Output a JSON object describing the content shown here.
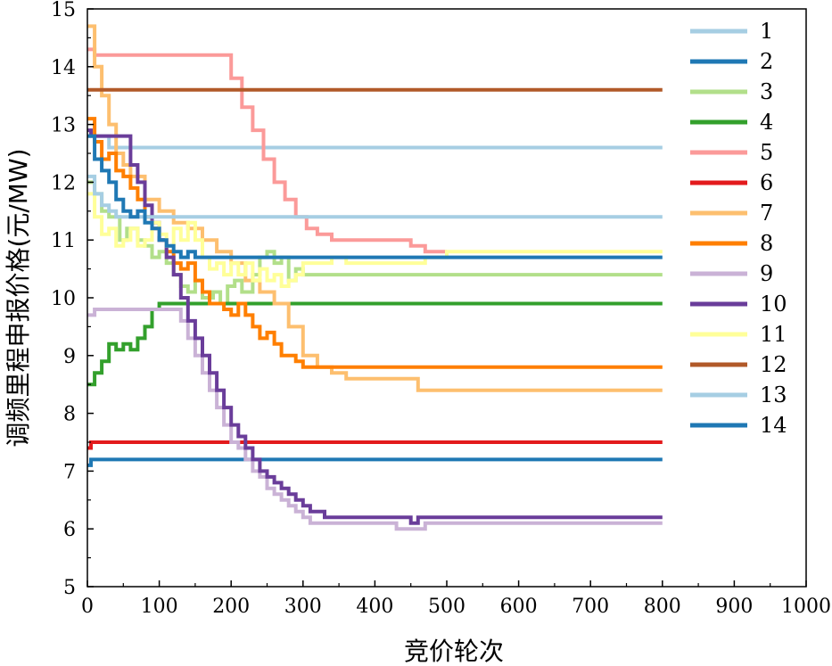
{
  "chart_data": {
    "type": "line",
    "xlabel": "竞价轮次",
    "ylabel": "调频里程申报价格(元/MW)",
    "xlim": [
      0,
      1000
    ],
    "ylim": [
      5,
      15
    ],
    "xticks": [
      "0",
      "100",
      "200",
      "300",
      "400",
      "500",
      "600",
      "700",
      "800",
      "900",
      "1000"
    ],
    "yticks": [
      "5",
      "6",
      "7",
      "8",
      "9",
      "10",
      "11",
      "12",
      "13",
      "14",
      "15"
    ],
    "grid": false,
    "legend_position": "top-right",
    "series": [
      {
        "name": "1",
        "color": "#a6cee3",
        "points": [
          [
            0,
            12.8
          ],
          [
            30,
            12.6
          ],
          [
            800,
            12.6
          ]
        ]
      },
      {
        "name": "2",
        "color": "#1f78b4",
        "points": [
          [
            0,
            7.1
          ],
          [
            5,
            7.2
          ],
          [
            800,
            7.2
          ]
        ]
      },
      {
        "name": "3",
        "color": "#b2df8a",
        "points": [
          [
            0,
            12.0
          ],
          [
            10,
            11.8
          ],
          [
            20,
            11.5
          ],
          [
            30,
            11.4
          ],
          [
            45,
            11.0
          ],
          [
            55,
            11.2
          ],
          [
            70,
            11.0
          ],
          [
            80,
            10.9
          ],
          [
            90,
            10.7
          ],
          [
            100,
            10.8
          ],
          [
            110,
            10.6
          ],
          [
            120,
            10.4
          ],
          [
            130,
            10.2
          ],
          [
            140,
            10.1
          ],
          [
            150,
            10.3
          ],
          [
            160,
            10.0
          ],
          [
            175,
            10.1
          ],
          [
            185,
            9.9
          ],
          [
            195,
            10.2
          ],
          [
            205,
            10.3
          ],
          [
            215,
            10.1
          ],
          [
            230,
            10.4
          ],
          [
            240,
            10.7
          ],
          [
            250,
            10.8
          ],
          [
            260,
            10.6
          ],
          [
            270,
            10.7
          ],
          [
            280,
            10.3
          ],
          [
            290,
            10.5
          ],
          [
            300,
            10.4
          ],
          [
            800,
            10.4
          ]
        ]
      },
      {
        "name": "4",
        "color": "#33a02c",
        "points": [
          [
            0,
            8.5
          ],
          [
            10,
            8.7
          ],
          [
            20,
            8.9
          ],
          [
            30,
            9.2
          ],
          [
            40,
            9.1
          ],
          [
            50,
            9.2
          ],
          [
            60,
            9.1
          ],
          [
            70,
            9.3
          ],
          [
            80,
            9.5
          ],
          [
            90,
            9.8
          ],
          [
            100,
            9.9
          ],
          [
            800,
            9.9
          ]
        ]
      },
      {
        "name": "5",
        "color": "#fb9a99",
        "points": [
          [
            0,
            14.3
          ],
          [
            10,
            14.2
          ],
          [
            185,
            14.2
          ],
          [
            200,
            13.8
          ],
          [
            215,
            13.3
          ],
          [
            230,
            12.9
          ],
          [
            245,
            12.4
          ],
          [
            260,
            12.0
          ],
          [
            275,
            11.7
          ],
          [
            290,
            11.4
          ],
          [
            305,
            11.2
          ],
          [
            320,
            11.1
          ],
          [
            340,
            11.0
          ],
          [
            430,
            11.0
          ],
          [
            450,
            10.9
          ],
          [
            470,
            10.8
          ],
          [
            500,
            10.8
          ]
        ]
      },
      {
        "name": "6",
        "color": "#e31a1c",
        "points": [
          [
            0,
            7.4
          ],
          [
            5,
            7.5
          ],
          [
            800,
            7.5
          ]
        ]
      },
      {
        "name": "7",
        "color": "#fdbf6f",
        "points": [
          [
            0,
            14.7
          ],
          [
            10,
            14.0
          ],
          [
            20,
            13.5
          ],
          [
            30,
            13.0
          ],
          [
            40,
            12.5
          ],
          [
            50,
            12.3
          ],
          [
            60,
            12.1
          ],
          [
            80,
            11.7
          ],
          [
            100,
            11.5
          ],
          [
            120,
            11.3
          ],
          [
            140,
            11.2
          ],
          [
            160,
            11.0
          ],
          [
            180,
            10.8
          ],
          [
            200,
            10.6
          ],
          [
            220,
            10.3
          ],
          [
            240,
            10.1
          ],
          [
            260,
            9.9
          ],
          [
            280,
            9.5
          ],
          [
            300,
            9.0
          ],
          [
            320,
            8.8
          ],
          [
            340,
            8.7
          ],
          [
            360,
            8.6
          ],
          [
            440,
            8.6
          ],
          [
            460,
            8.4
          ],
          [
            800,
            8.4
          ]
        ]
      },
      {
        "name": "8",
        "color": "#ff7f00",
        "points": [
          [
            0,
            13.1
          ],
          [
            10,
            12.7
          ],
          [
            20,
            12.4
          ],
          [
            30,
            12.5
          ],
          [
            40,
            12.2
          ],
          [
            50,
            12.1
          ],
          [
            60,
            11.9
          ],
          [
            70,
            11.7
          ],
          [
            80,
            11.4
          ],
          [
            90,
            11.2
          ],
          [
            100,
            11.0
          ],
          [
            110,
            10.8
          ],
          [
            120,
            10.6
          ],
          [
            130,
            10.5
          ],
          [
            140,
            10.6
          ],
          [
            150,
            10.3
          ],
          [
            160,
            10.1
          ],
          [
            170,
            9.9
          ],
          [
            180,
            9.9
          ],
          [
            190,
            9.8
          ],
          [
            200,
            9.7
          ],
          [
            210,
            9.9
          ],
          [
            220,
            9.7
          ],
          [
            230,
            9.5
          ],
          [
            240,
            9.3
          ],
          [
            250,
            9.4
          ],
          [
            260,
            9.2
          ],
          [
            270,
            9.0
          ],
          [
            280,
            9.0
          ],
          [
            290,
            8.9
          ],
          [
            300,
            8.8
          ],
          [
            800,
            8.8
          ]
        ]
      },
      {
        "name": "9",
        "color": "#cab2d6",
        "points": [
          [
            0,
            9.7
          ],
          [
            10,
            9.8
          ],
          [
            120,
            9.8
          ],
          [
            130,
            9.6
          ],
          [
            140,
            9.3
          ],
          [
            150,
            9.0
          ],
          [
            160,
            8.7
          ],
          [
            170,
            8.4
          ],
          [
            180,
            8.1
          ],
          [
            190,
            7.8
          ],
          [
            200,
            7.5
          ],
          [
            210,
            7.4
          ],
          [
            220,
            7.2
          ],
          [
            230,
            7.0
          ],
          [
            240,
            6.9
          ],
          [
            250,
            6.7
          ],
          [
            260,
            6.6
          ],
          [
            270,
            6.5
          ],
          [
            280,
            6.4
          ],
          [
            290,
            6.3
          ],
          [
            300,
            6.2
          ],
          [
            310,
            6.1
          ],
          [
            420,
            6.1
          ],
          [
            430,
            6.0
          ],
          [
            460,
            6.0
          ],
          [
            470,
            6.1
          ],
          [
            800,
            6.1
          ]
        ]
      },
      {
        "name": "10",
        "color": "#6a3d9a",
        "points": [
          [
            0,
            12.9
          ],
          [
            5,
            12.8
          ],
          [
            50,
            12.8
          ],
          [
            60,
            12.3
          ],
          [
            70,
            12.0
          ],
          [
            80,
            11.6
          ],
          [
            90,
            11.3
          ],
          [
            100,
            11.0
          ],
          [
            110,
            10.7
          ],
          [
            120,
            10.4
          ],
          [
            130,
            10.0
          ],
          [
            140,
            9.6
          ],
          [
            150,
            9.3
          ],
          [
            160,
            9.0
          ],
          [
            170,
            8.7
          ],
          [
            180,
            8.4
          ],
          [
            190,
            8.1
          ],
          [
            200,
            7.8
          ],
          [
            210,
            7.6
          ],
          [
            220,
            7.4
          ],
          [
            230,
            7.2
          ],
          [
            240,
            7.0
          ],
          [
            250,
            6.9
          ],
          [
            260,
            6.8
          ],
          [
            270,
            6.7
          ],
          [
            280,
            6.6
          ],
          [
            290,
            6.5
          ],
          [
            300,
            6.4
          ],
          [
            310,
            6.3
          ],
          [
            320,
            6.3
          ],
          [
            330,
            6.2
          ],
          [
            420,
            6.2
          ],
          [
            440,
            6.2
          ],
          [
            450,
            6.1
          ],
          [
            460,
            6.2
          ],
          [
            800,
            6.2
          ]
        ]
      },
      {
        "name": "11",
        "color": "#ffff99",
        "points": [
          [
            0,
            11.8
          ],
          [
            10,
            11.4
          ],
          [
            20,
            11.1
          ],
          [
            30,
            11.2
          ],
          [
            40,
            10.9
          ],
          [
            50,
            11.0
          ],
          [
            60,
            11.2
          ],
          [
            70,
            10.9
          ],
          [
            80,
            11.0
          ],
          [
            90,
            11.3
          ],
          [
            100,
            11.1
          ],
          [
            110,
            10.9
          ],
          [
            120,
            11.2
          ],
          [
            130,
            11.0
          ],
          [
            140,
            11.3
          ],
          [
            150,
            11.0
          ],
          [
            160,
            10.7
          ],
          [
            170,
            10.5
          ],
          [
            180,
            10.6
          ],
          [
            190,
            10.4
          ],
          [
            200,
            10.6
          ],
          [
            210,
            10.4
          ],
          [
            220,
            10.6
          ],
          [
            230,
            10.3
          ],
          [
            240,
            10.5
          ],
          [
            250,
            10.3
          ],
          [
            260,
            10.4
          ],
          [
            270,
            10.2
          ],
          [
            280,
            10.3
          ],
          [
            290,
            10.4
          ],
          [
            300,
            10.6
          ],
          [
            320,
            10.6
          ],
          [
            340,
            10.7
          ],
          [
            360,
            10.6
          ],
          [
            420,
            10.6
          ],
          [
            470,
            10.7
          ],
          [
            500,
            10.8
          ],
          [
            800,
            10.8
          ]
        ]
      },
      {
        "name": "12",
        "color": "#b15928",
        "points": [
          [
            0,
            13.6
          ],
          [
            800,
            13.6
          ]
        ]
      },
      {
        "name": "13",
        "color": "#a6cee3",
        "points": [
          [
            0,
            12.1
          ],
          [
            10,
            11.8
          ],
          [
            20,
            11.6
          ],
          [
            30,
            11.5
          ],
          [
            40,
            11.4
          ],
          [
            800,
            11.4
          ]
        ]
      },
      {
        "name": "14",
        "color": "#1f78b4",
        "points": [
          [
            0,
            12.8
          ],
          [
            10,
            12.4
          ],
          [
            20,
            12.2
          ],
          [
            30,
            12.0
          ],
          [
            40,
            11.7
          ],
          [
            50,
            11.5
          ],
          [
            60,
            11.4
          ],
          [
            70,
            11.5
          ],
          [
            80,
            11.3
          ],
          [
            90,
            11.2
          ],
          [
            100,
            11.0
          ],
          [
            110,
            10.9
          ],
          [
            120,
            10.8
          ],
          [
            130,
            10.7
          ],
          [
            140,
            10.8
          ],
          [
            150,
            10.7
          ],
          [
            800,
            10.7
          ]
        ]
      }
    ]
  }
}
